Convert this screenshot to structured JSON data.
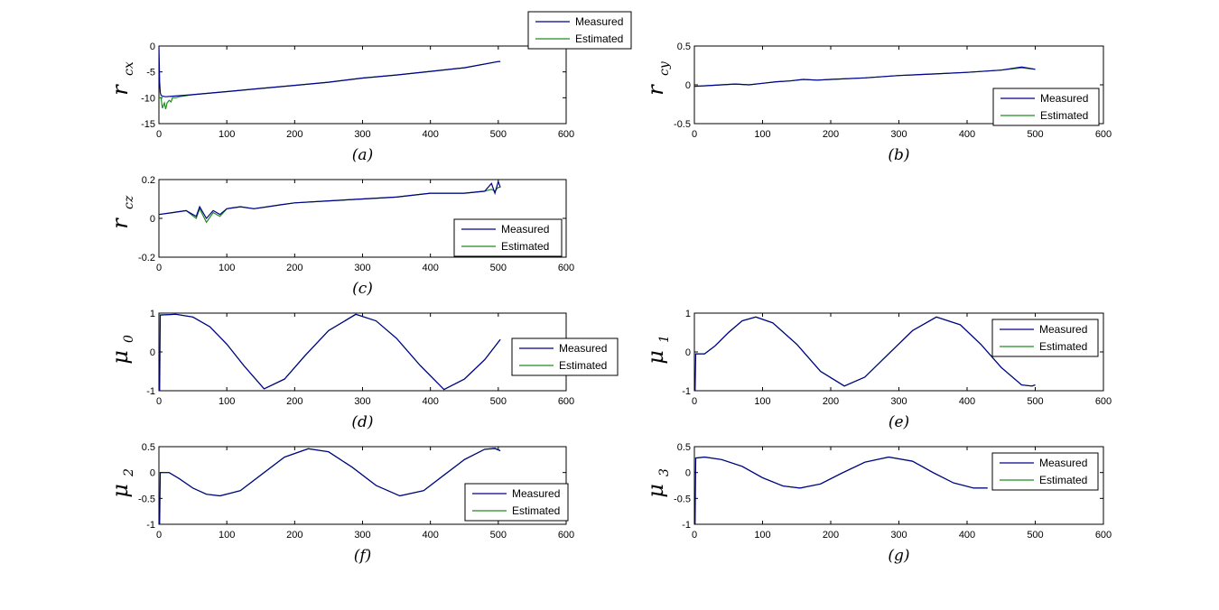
{
  "figure": {
    "background": "#ffffff",
    "measured_color": "#00008b",
    "estimated_color": "#228b22"
  },
  "chart_data": [
    {
      "id": "a",
      "type": "line",
      "caption": "(a)",
      "ylabel": "r",
      "ylabel_sub": "cx",
      "xlim": [
        0,
        600
      ],
      "ylim": [
        -15,
        0
      ],
      "xticks": [
        0,
        100,
        200,
        300,
        400,
        500,
        600
      ],
      "yticks": [
        0,
        -5,
        -10,
        -15
      ],
      "legend": "top-right-outside",
      "series": [
        {
          "name": "Measured",
          "x": [
            0,
            1,
            2,
            3,
            5,
            10,
            20,
            50,
            100,
            150,
            200,
            250,
            300,
            350,
            400,
            450,
            500,
            503
          ],
          "y": [
            0,
            -7,
            -9,
            -9.5,
            -9.7,
            -9.8,
            -9.7,
            -9.4,
            -8.8,
            -8.2,
            -7.6,
            -7.0,
            -6.2,
            -5.6,
            -4.9,
            -4.2,
            -3.0,
            -3.0
          ]
        },
        {
          "name": "Estimated",
          "x": [
            0,
            3,
            5,
            8,
            10,
            12,
            15,
            18,
            20,
            25,
            30,
            50,
            100,
            150,
            200,
            250,
            300,
            350,
            400,
            450,
            500,
            503
          ],
          "y": [
            -10,
            -10,
            -12,
            -11,
            -12.2,
            -11,
            -10.5,
            -10.8,
            -10,
            -10,
            -9.8,
            -9.4,
            -8.8,
            -8.2,
            -7.6,
            -7.0,
            -6.2,
            -5.6,
            -4.9,
            -4.2,
            -3.0,
            -3.0
          ]
        }
      ]
    },
    {
      "id": "b",
      "type": "line",
      "caption": "(b)",
      "ylabel": "r",
      "ylabel_sub": "cy",
      "xlim": [
        0,
        600
      ],
      "ylim": [
        -0.5,
        0.5
      ],
      "xticks": [
        0,
        100,
        200,
        300,
        400,
        500,
        600
      ],
      "yticks": [
        0.5,
        0,
        -0.5
      ],
      "legend": "bottom-right",
      "series": [
        {
          "name": "Measured",
          "x": [
            0,
            20,
            40,
            60,
            80,
            100,
            120,
            140,
            160,
            180,
            200,
            250,
            300,
            350,
            400,
            450,
            480,
            500
          ],
          "y": [
            -0.02,
            -0.01,
            0.0,
            0.01,
            0.0,
            0.02,
            0.04,
            0.05,
            0.07,
            0.06,
            0.07,
            0.09,
            0.12,
            0.14,
            0.16,
            0.19,
            0.23,
            0.2
          ]
        },
        {
          "name": "Estimated",
          "x": [
            0,
            20,
            40,
            60,
            80,
            100,
            120,
            140,
            160,
            180,
            200,
            250,
            300,
            350,
            400,
            450,
            480,
            500
          ],
          "y": [
            -0.02,
            -0.01,
            0.0,
            0.01,
            0.0,
            0.02,
            0.04,
            0.05,
            0.07,
            0.06,
            0.07,
            0.09,
            0.12,
            0.14,
            0.16,
            0.19,
            0.22,
            0.2
          ]
        }
      ]
    },
    {
      "id": "c",
      "type": "line",
      "caption": "(c)",
      "ylabel": "r",
      "ylabel_sub": "cz",
      "xlim": [
        0,
        600
      ],
      "ylim": [
        -0.2,
        0.2
      ],
      "xticks": [
        0,
        100,
        200,
        300,
        400,
        500,
        600
      ],
      "yticks": [
        0.2,
        0,
        -0.2
      ],
      "legend": "bottom-right",
      "series": [
        {
          "name": "Measured",
          "x": [
            0,
            20,
            40,
            55,
            60,
            70,
            80,
            90,
            100,
            120,
            140,
            160,
            180,
            200,
            250,
            300,
            350,
            400,
            450,
            480,
            490,
            495,
            500,
            503
          ],
          "y": [
            0.02,
            0.03,
            0.04,
            0.01,
            0.06,
            0.0,
            0.04,
            0.02,
            0.05,
            0.06,
            0.05,
            0.06,
            0.07,
            0.08,
            0.09,
            0.1,
            0.11,
            0.13,
            0.13,
            0.14,
            0.18,
            0.13,
            0.19,
            0.16
          ]
        },
        {
          "name": "Estimated",
          "x": [
            0,
            20,
            40,
            55,
            60,
            70,
            80,
            90,
            100,
            120,
            140,
            160,
            180,
            200,
            250,
            300,
            350,
            400,
            450,
            480,
            490,
            495,
            500,
            503
          ],
          "y": [
            0.02,
            0.03,
            0.04,
            0.0,
            0.05,
            -0.02,
            0.03,
            0.01,
            0.05,
            0.06,
            0.05,
            0.06,
            0.07,
            0.08,
            0.09,
            0.1,
            0.11,
            0.13,
            0.13,
            0.14,
            0.15,
            0.14,
            0.16,
            0.16
          ]
        }
      ]
    },
    {
      "id": "d",
      "type": "line",
      "caption": "(d)",
      "ylabel": "μ",
      "ylabel_sub": "0",
      "xlim": [
        0,
        600
      ],
      "ylim": [
        -1,
        1
      ],
      "xticks": [
        0,
        100,
        200,
        300,
        400,
        500,
        600
      ],
      "yticks": [
        1,
        0,
        -1
      ],
      "legend": "right-outside",
      "series": [
        {
          "name": "Measured",
          "x": [
            0,
            1,
            2,
            25,
            50,
            75,
            100,
            125,
            155,
            185,
            215,
            250,
            290,
            320,
            350,
            385,
            420,
            450,
            480,
            503
          ],
          "y": [
            -1,
            -1,
            0.95,
            0.97,
            0.9,
            0.65,
            0.2,
            -0.35,
            -0.95,
            -0.7,
            -0.1,
            0.55,
            0.97,
            0.8,
            0.35,
            -0.35,
            -0.97,
            -0.7,
            -0.2,
            0.32
          ]
        },
        {
          "name": "Estimated",
          "x": [
            0,
            25,
            50,
            75,
            100,
            125,
            155,
            185,
            215,
            250,
            290,
            320,
            350,
            385,
            420,
            450,
            480,
            503
          ],
          "y": [
            0.95,
            0.97,
            0.9,
            0.65,
            0.2,
            -0.35,
            -0.95,
            -0.7,
            -0.1,
            0.55,
            0.97,
            0.8,
            0.35,
            -0.35,
            -0.97,
            -0.7,
            -0.2,
            0.32
          ]
        }
      ]
    },
    {
      "id": "e",
      "type": "line",
      "caption": "(e)",
      "ylabel": "μ",
      "ylabel_sub": "1",
      "xlim": [
        0,
        600
      ],
      "ylim": [
        -1,
        1
      ],
      "xticks": [
        0,
        100,
        200,
        300,
        400,
        500,
        600
      ],
      "yticks": [
        1,
        0,
        -1
      ],
      "legend": "top-right",
      "series": [
        {
          "name": "Measured",
          "x": [
            0,
            1,
            2,
            15,
            30,
            50,
            70,
            90,
            115,
            150,
            185,
            220,
            250,
            285,
            320,
            355,
            390,
            420,
            450,
            480,
            495,
            500
          ],
          "y": [
            -1,
            -1,
            -0.05,
            -0.05,
            0.15,
            0.5,
            0.8,
            0.9,
            0.75,
            0.2,
            -0.5,
            -0.88,
            -0.65,
            -0.05,
            0.55,
            0.9,
            0.7,
            0.2,
            -0.4,
            -0.85,
            -0.88,
            -0.85
          ]
        },
        {
          "name": "Estimated",
          "x": [
            0,
            15,
            30,
            50,
            70,
            90,
            115,
            150,
            185,
            220,
            250,
            285,
            320,
            355,
            390,
            420,
            450,
            480,
            495,
            500
          ],
          "y": [
            -0.05,
            -0.05,
            0.15,
            0.5,
            0.8,
            0.9,
            0.75,
            0.2,
            -0.5,
            -0.88,
            -0.65,
            -0.05,
            0.55,
            0.9,
            0.7,
            0.2,
            -0.4,
            -0.85,
            -0.88,
            -0.85
          ]
        }
      ]
    },
    {
      "id": "f",
      "type": "line",
      "caption": "(f)",
      "ylabel": "μ",
      "ylabel_sub": "2",
      "xlim": [
        0,
        600
      ],
      "ylim": [
        -1,
        0.5
      ],
      "xticks": [
        0,
        100,
        200,
        300,
        400,
        500,
        600
      ],
      "yticks": [
        0.5,
        0,
        -0.5,
        -1
      ],
      "legend": "bottom-right",
      "series": [
        {
          "name": "Measured",
          "x": [
            0,
            1,
            2,
            15,
            30,
            50,
            70,
            90,
            120,
            150,
            185,
            220,
            250,
            285,
            320,
            355,
            390,
            420,
            450,
            480,
            495,
            503
          ],
          "y": [
            -1,
            -1,
            0.0,
            0.0,
            -0.12,
            -0.3,
            -0.42,
            -0.45,
            -0.35,
            -0.05,
            0.3,
            0.46,
            0.4,
            0.1,
            -0.25,
            -0.45,
            -0.35,
            -0.05,
            0.25,
            0.45,
            0.47,
            0.42
          ]
        },
        {
          "name": "Estimated",
          "x": [
            0,
            15,
            30,
            50,
            70,
            90,
            120,
            150,
            185,
            220,
            250,
            285,
            320,
            355,
            390,
            420,
            450,
            480,
            495,
            503
          ],
          "y": [
            0.0,
            0.0,
            -0.12,
            -0.3,
            -0.42,
            -0.45,
            -0.35,
            -0.05,
            0.3,
            0.46,
            0.4,
            0.1,
            -0.25,
            -0.45,
            -0.35,
            -0.05,
            0.25,
            0.45,
            0.46,
            0.42
          ]
        }
      ]
    },
    {
      "id": "g",
      "type": "line",
      "caption": "(g)",
      "ylabel": "μ",
      "ylabel_sub": "3",
      "xlim": [
        0,
        600
      ],
      "ylim": [
        -1,
        0.5
      ],
      "xticks": [
        0,
        100,
        200,
        300,
        400,
        500,
        600
      ],
      "yticks": [
        0.5,
        0,
        -0.5,
        -1
      ],
      "legend": "top-right",
      "series": [
        {
          "name": "Measured",
          "x": [
            0,
            1,
            2,
            15,
            40,
            70,
            100,
            130,
            155,
            185,
            215,
            250,
            285,
            320,
            350,
            380,
            410,
            430
          ],
          "y": [
            -1,
            -1,
            0.28,
            0.3,
            0.25,
            0.12,
            -0.1,
            -0.26,
            -0.3,
            -0.22,
            -0.02,
            0.2,
            0.3,
            0.22,
            0.0,
            -0.2,
            -0.3,
            -0.3
          ]
        },
        {
          "name": "Estimated",
          "x": [
            0,
            15,
            40,
            70,
            100,
            130,
            155,
            185,
            215,
            250,
            285,
            320,
            350,
            380,
            410,
            430
          ],
          "y": [
            0.28,
            0.3,
            0.25,
            0.12,
            -0.1,
            -0.26,
            -0.3,
            -0.22,
            -0.02,
            0.2,
            0.3,
            0.22,
            0.0,
            -0.2,
            -0.3,
            -0.3
          ]
        }
      ]
    }
  ]
}
